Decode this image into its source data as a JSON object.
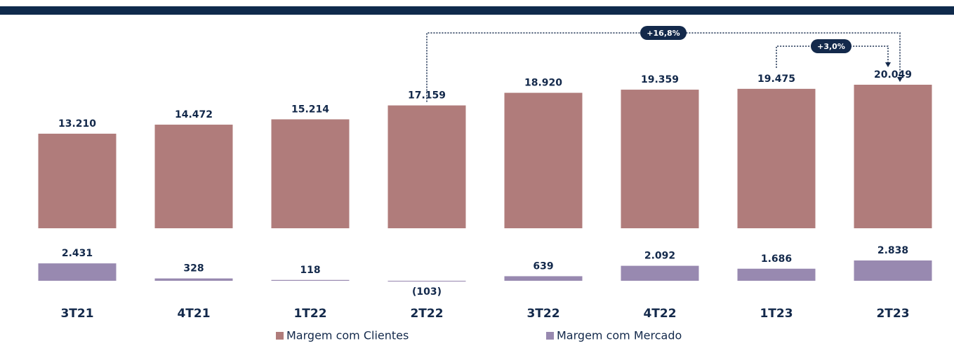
{
  "chart_data": {
    "type": "bar",
    "categories": [
      "3T21",
      "4T21",
      "1T22",
      "2T22",
      "3T22",
      "4T22",
      "1T23",
      "2T23"
    ],
    "series": [
      {
        "name": "Margem com Clientes",
        "color": "#b07c7b",
        "values": [
          13210,
          14472,
          15214,
          17159,
          18920,
          19359,
          19475,
          20049
        ],
        "value_labels": [
          "13.210",
          "14.472",
          "15.214",
          "17.159",
          "18.920",
          "19.359",
          "19.475",
          "20.049"
        ]
      },
      {
        "name": "Margem com Mercado",
        "color": "#9889b0",
        "values": [
          2431,
          328,
          118,
          -103,
          639,
          2092,
          1686,
          2838
        ],
        "value_labels": [
          "2.431",
          "328",
          "118",
          "(103)",
          "639",
          "2.092",
          "1.686",
          "2.838"
        ]
      }
    ],
    "annotations": [
      {
        "text": "+16,8%"
      },
      {
        "text": "+3,0%"
      }
    ]
  }
}
